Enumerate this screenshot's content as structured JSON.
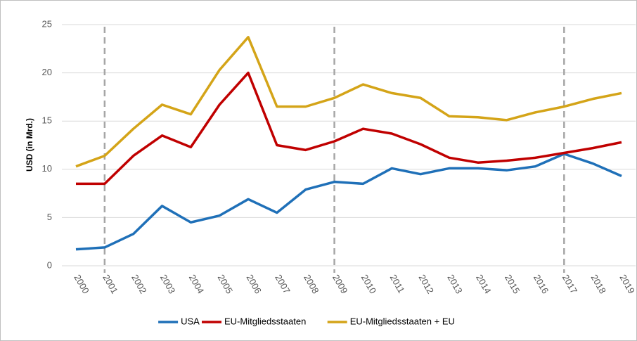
{
  "chart_data": {
    "type": "line",
    "y_label": "USD (in Mrd.)",
    "categories": [
      "2000",
      "2001",
      "2002",
      "2003",
      "2004",
      "2005",
      "2006",
      "2007",
      "2008",
      "2009",
      "2010",
      "2011",
      "2012",
      "2013",
      "2014",
      "2015",
      "2016",
      "2017",
      "2018",
      "2019"
    ],
    "series": [
      {
        "name": "USA",
        "color": "#1f70b8",
        "values": [
          1.7,
          1.9,
          3.3,
          6.2,
          4.5,
          5.2,
          6.9,
          5.5,
          7.9,
          8.7,
          8.5,
          10.1,
          9.5,
          10.1,
          10.1,
          9.9,
          10.3,
          11.6,
          10.6,
          9.3
        ]
      },
      {
        "name": "EU-Mitgliedsstaaten",
        "color": "#c00000",
        "values": [
          8.5,
          8.5,
          11.4,
          13.5,
          12.3,
          16.7,
          20.0,
          12.5,
          12.0,
          12.9,
          14.2,
          13.7,
          12.6,
          11.2,
          10.7,
          10.9,
          11.2,
          11.7,
          12.2,
          12.8
        ]
      },
      {
        "name": "EU-Mitgliedsstaaten + EU",
        "color": "#d4a418",
        "values": [
          10.3,
          11.4,
          14.2,
          16.7,
          15.7,
          20.3,
          23.7,
          16.5,
          16.5,
          17.4,
          18.8,
          17.9,
          17.4,
          15.5,
          15.4,
          15.1,
          15.9,
          16.5,
          17.3,
          17.9
        ]
      }
    ],
    "marker_lines_x": [
      "2001",
      "2009",
      "2017"
    ],
    "ylim": [
      0,
      25
    ],
    "yticks": [
      0,
      5,
      10,
      15,
      20,
      25
    ],
    "grid": true,
    "legend": "bottom"
  }
}
